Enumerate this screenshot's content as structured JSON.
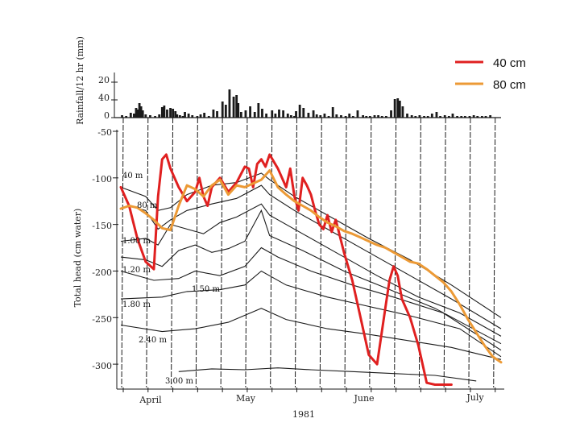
{
  "chart_data": [
    {
      "type": "bar",
      "title": "",
      "ylabel": "Rainfall/12 hr (mm)",
      "ytick_labels": [
        "20",
        "40",
        "0"
      ],
      "ylim": [
        0,
        50
      ],
      "x": [
        0.3,
        1.3,
        2.4,
        3.2,
        3.7,
        4.1,
        4.5,
        4.9,
        5.3,
        6.0,
        7.1,
        8.3,
        9.3,
        10.0,
        10.5,
        11.2,
        12.0,
        12.6,
        13.2,
        13.6,
        14.3,
        15.0,
        15.5,
        16.4,
        17.3,
        18.5,
        19.3,
        20.2,
        21.3,
        22.4,
        23.3,
        24.6,
        25.4,
        26.3,
        27.3,
        28.0,
        28.4,
        29.1,
        30.2,
        31.3,
        32.4,
        33.3,
        34.2,
        35.2,
        36.6,
        37.4,
        38.3,
        39.3,
        40.4,
        41.2,
        42.0,
        42.4,
        43.3,
        44.2,
        45.4,
        46.6,
        47.4,
        48.3,
        49.3,
        50.3,
        51.3,
        52.2,
        53.3,
        54.4,
        55.3,
        56.2,
        57.3,
        58.6,
        59.4,
        60.3,
        61.4,
        62.3,
        63.2,
        64.2,
        65.4,
        66.3,
        67.0,
        67.5,
        68.2,
        69.3,
        70.4,
        71.3,
        72.3,
        73.4,
        74.3,
        75.3,
        76.4,
        77.3,
        78.4,
        79.4,
        80.3,
        81.4,
        82.4,
        83.3,
        84.4,
        85.4,
        86.3,
        87.4,
        88.3,
        89.4
      ],
      "values": [
        3,
        2,
        6,
        5,
        12,
        10,
        18,
        14,
        9,
        4,
        3,
        2,
        4,
        13,
        15,
        10,
        12,
        11,
        8,
        4,
        3,
        2,
        7,
        5,
        3,
        2,
        4,
        6,
        2,
        10,
        8,
        20,
        16,
        35,
        26,
        28,
        18,
        7,
        9,
        14,
        7,
        18,
        11,
        5,
        9,
        5,
        10,
        9,
        5,
        3,
        2,
        8,
        16,
        12,
        6,
        9,
        4,
        3,
        5,
        2,
        13,
        4,
        3,
        2,
        5,
        2,
        9,
        3,
        2,
        2,
        3,
        3,
        2,
        2,
        9,
        23,
        24,
        21,
        14,
        5,
        3,
        2,
        3,
        2,
        2,
        5,
        7,
        2,
        3,
        2,
        5,
        2,
        2,
        2,
        2,
        3,
        2,
        2,
        2,
        3
      ]
    },
    {
      "type": "line",
      "xlabel": "1981",
      "ylabel": "Total head (cm water)",
      "xtick_labels": [
        "April",
        "May",
        "June",
        "July"
      ],
      "ytick_labels": [
        "-50",
        "-100",
        "-150",
        "-200",
        "-250",
        "-300"
      ],
      "xlim": [
        0,
        92
      ],
      "ylim": [
        -325,
        -50
      ],
      "legend_position": "top-right",
      "legend": [
        "40 cm",
        "80 cm"
      ],
      "depth_labels": [
        "40 m",
        "80 m",
        "1.00 m",
        "1.20 m",
        "1.50 m",
        "1.80 m",
        "2.40 m",
        "3.00 m"
      ],
      "series": [
        {
          "name": "40 cm",
          "color": "#e02020",
          "x": [
            0,
            2,
            4,
            6,
            8,
            9,
            10,
            11,
            12,
            14,
            16,
            18,
            19,
            20,
            21,
            22,
            24,
            26,
            28,
            30,
            31,
            32,
            33,
            34,
            35,
            36,
            38,
            40,
            41,
            42,
            43,
            44,
            45,
            46,
            47,
            48,
            49,
            50,
            51,
            52,
            54,
            56,
            58,
            60,
            62,
            64,
            65,
            66,
            67,
            68,
            70,
            72,
            74,
            76,
            78,
            80
          ],
          "y": [
            -110,
            -130,
            -165,
            -190,
            -198,
            -120,
            -80,
            -75,
            -90,
            -110,
            -125,
            -115,
            -100,
            -120,
            -130,
            -110,
            -100,
            -115,
            -105,
            -88,
            -90,
            -110,
            -85,
            -80,
            -88,
            -75,
            -90,
            -110,
            -90,
            -120,
            -135,
            -100,
            -108,
            -118,
            -135,
            -150,
            -155,
            -140,
            -158,
            -145,
            -180,
            -210,
            -250,
            -290,
            -300,
            -240,
            -210,
            -195,
            -205,
            -230,
            -250,
            -280,
            -320,
            -322,
            -322,
            -322
          ]
        },
        {
          "name": "80 cm",
          "color": "#ec9a36",
          "x": [
            0,
            2,
            4,
            6,
            8,
            10,
            12,
            14,
            16,
            18,
            20,
            22,
            24,
            26,
            28,
            30,
            32,
            34,
            36,
            38,
            40,
            42,
            44,
            46,
            48,
            50,
            52,
            54,
            56,
            58,
            60,
            62,
            64,
            66,
            68,
            70,
            72,
            74,
            76,
            78,
            80,
            82,
            84,
            86,
            88,
            90,
            92
          ],
          "y": [
            -133,
            -130,
            -132,
            -138,
            -145,
            -154,
            -156,
            -130,
            -108,
            -112,
            -120,
            -108,
            -102,
            -118,
            -108,
            -110,
            -106,
            -102,
            -92,
            -110,
            -118,
            -125,
            -130,
            -135,
            -142,
            -148,
            -152,
            -157,
            -160,
            -164,
            -168,
            -172,
            -175,
            -180,
            -185,
            -190,
            -192,
            -198,
            -205,
            -212,
            -222,
            -236,
            -252,
            -266,
            -280,
            -292,
            -298
          ]
        }
      ]
    }
  ],
  "colors": {
    "scan_line": "#1a1a1a",
    "red": "#e02020",
    "orange": "#ec9a36"
  }
}
